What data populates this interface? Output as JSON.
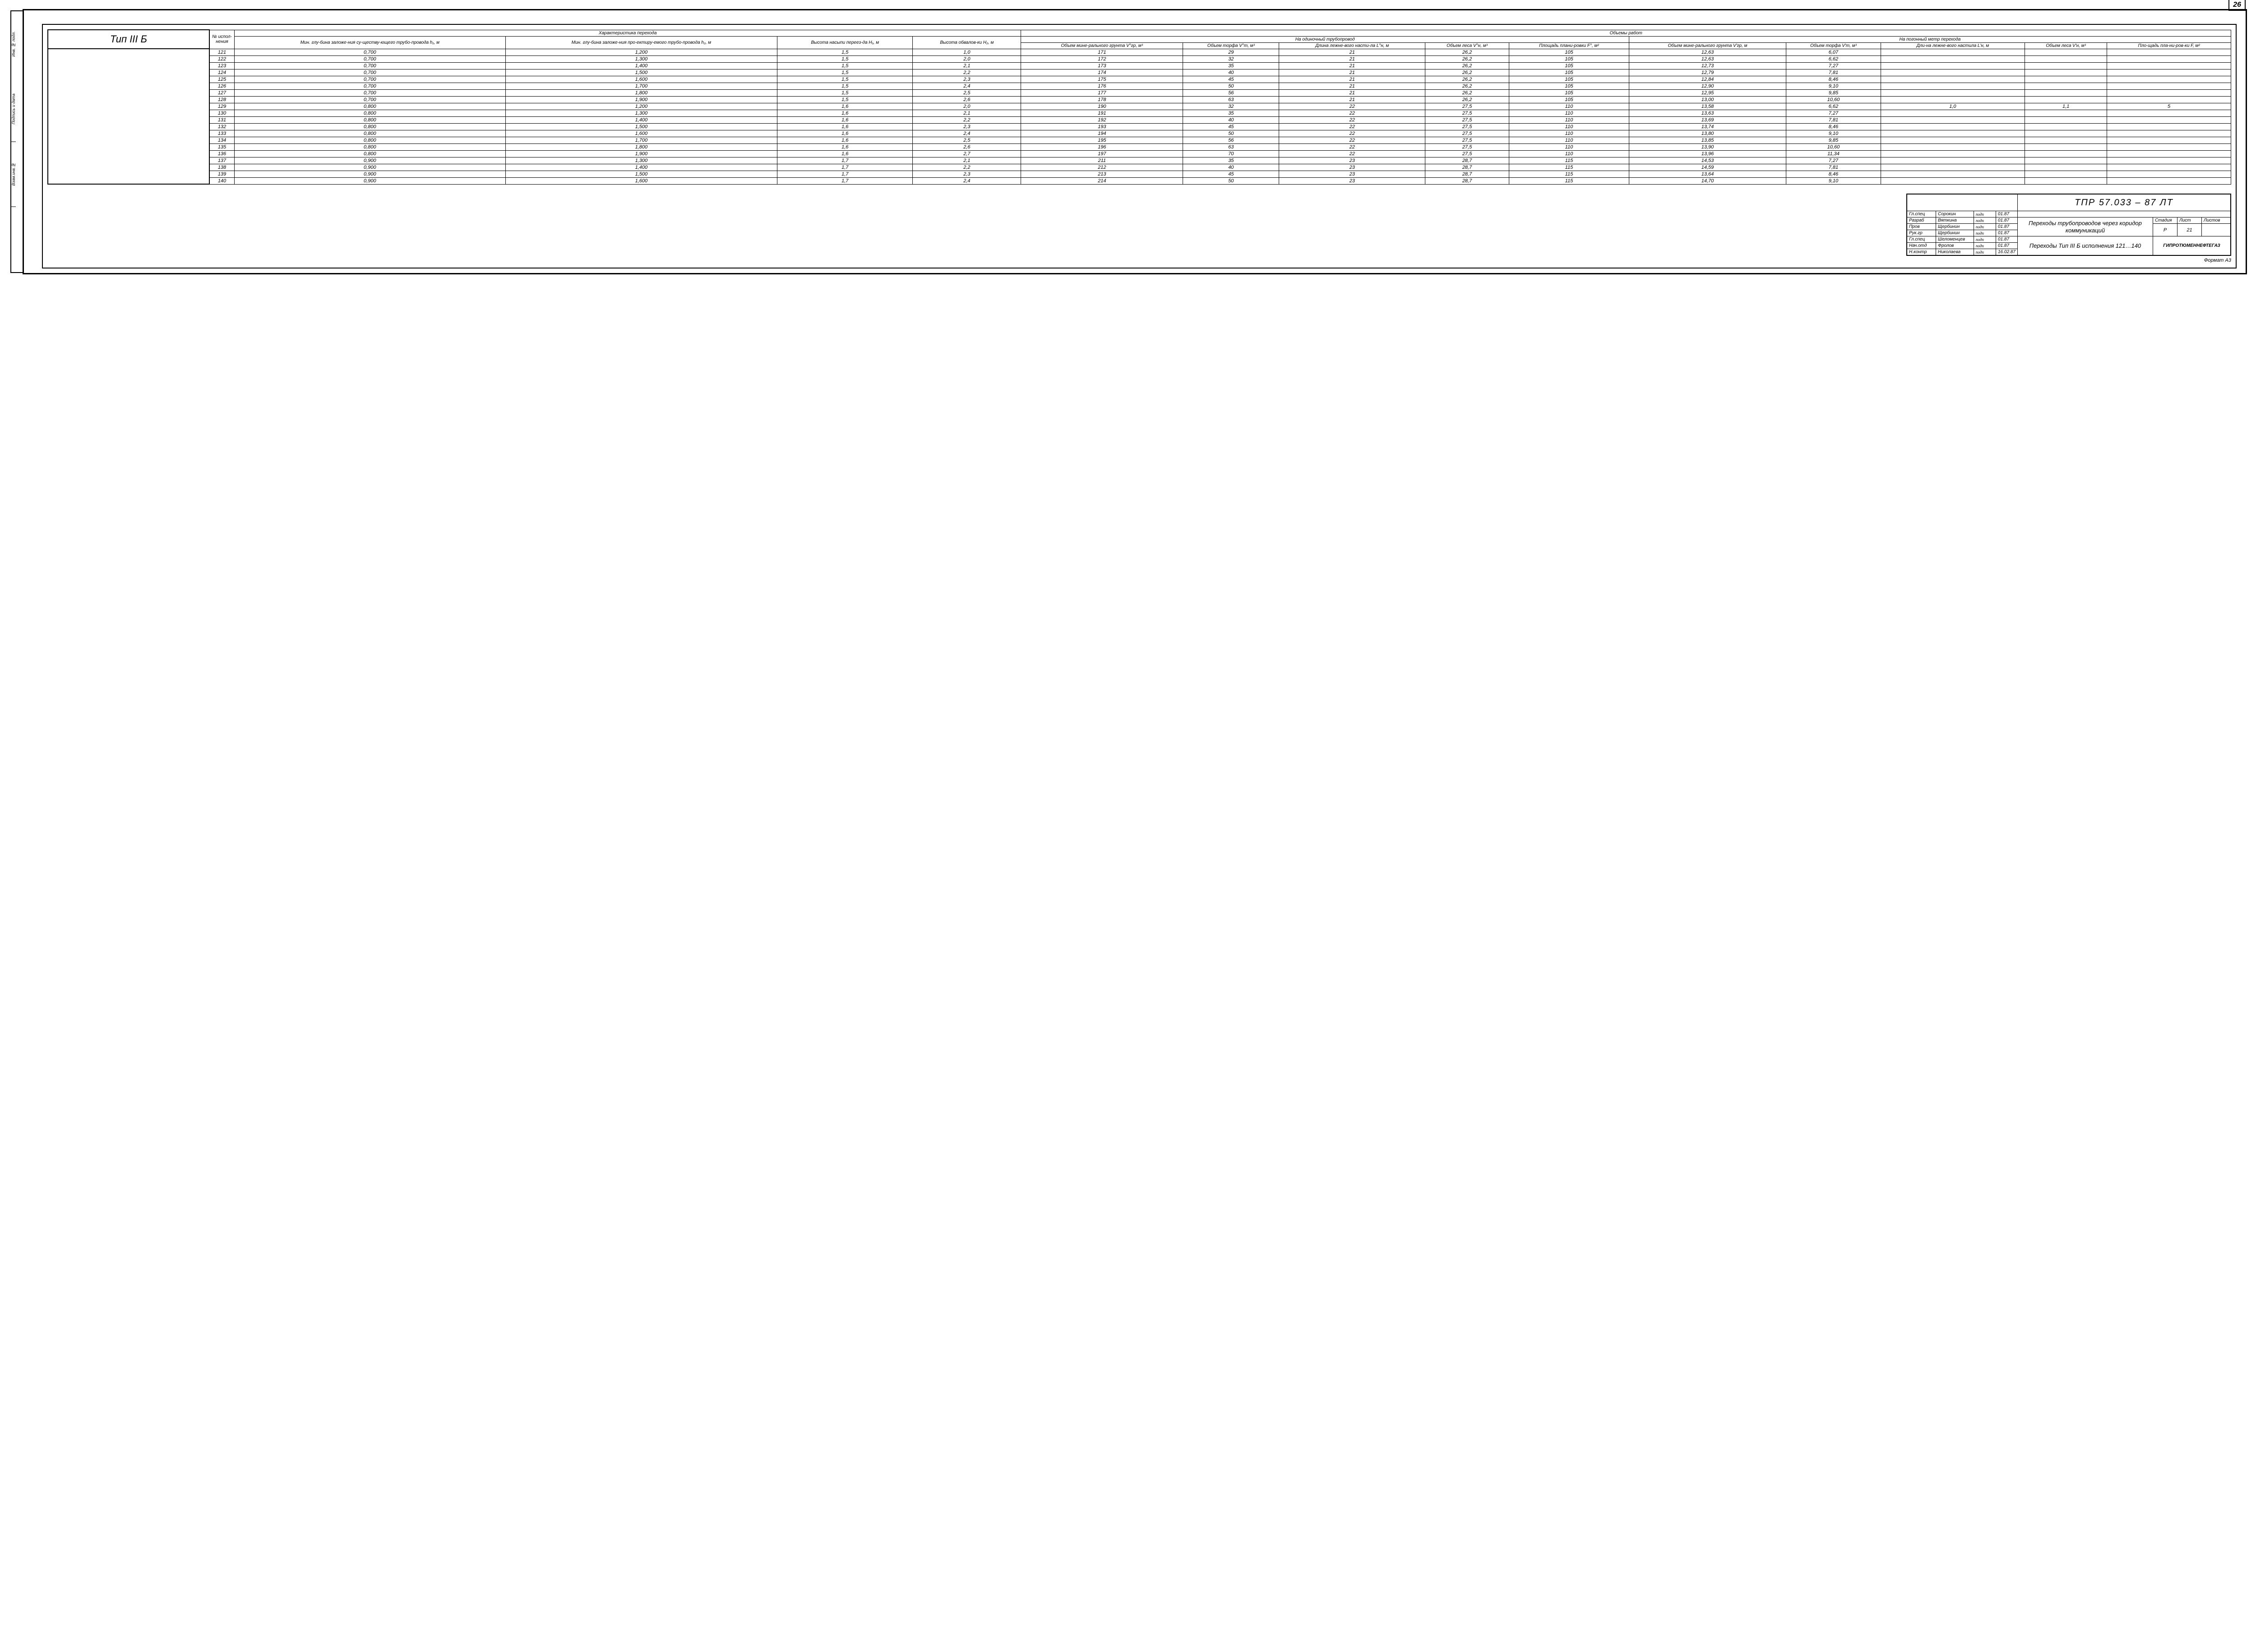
{
  "page_number": "26",
  "type_label": "Тип III Б",
  "left_margin_labels": [
    "Инв. № подл.",
    "Подпись и дата",
    "Взам.инв.№",
    ""
  ],
  "headers": {
    "super": {
      "char": "Характеристика перехода",
      "vol": "Объемы работ",
      "vol_single": "На одиночный трубопровод",
      "vol_perm": "На погонный метр перехода"
    },
    "exec": "№ испол-нения",
    "h1desc": "Мин. глу-бина заложе-ния су-ществу-ющего трубо-провода h₁, м",
    "h2desc": "Мин. глу-бина заложе-ния про-ектиру-емого трубо-провода h₂, м",
    "H1desc": "Высота насыпи переез-да H₁, м",
    "H2desc": "Высота обвалов-ки H₂, м",
    "Vgr": "Объем мине-рального грунта V°гр, м³",
    "Vt": "Объем торфа V°т, м³",
    "Ln": "Длина лежне-вого насти-ла L°н, м",
    "Vl": "Объем леса V°н, м³",
    "Fpl": "Площадь плани-ровки F°, м²",
    "Vgr1": "Объем мине-рального грунта V'гр, м",
    "Vt1": "Объем торфа V'т, м³",
    "Ln1": "Дли-на лежне-вого настила L'н, м",
    "Vl1": "Объем леса V'н, м³",
    "Fpl1": "Пло-щадь пла-ни-ров-ки F, м²"
  },
  "rows": [
    {
      "n": "121",
      "h1": "0,700",
      "h2": "1,200",
      "H1": "1,5",
      "H2": "1,0",
      "Vgr": "171",
      "Vt": "29",
      "Ln": "21",
      "Vl": "26,2",
      "F": "105",
      "Vgr1": "12,63",
      "Vt1": "6,07",
      "Ln1": "",
      "Vl1": "",
      "F1": ""
    },
    {
      "n": "122",
      "h1": "0,700",
      "h2": "1,300",
      "H1": "1,5",
      "H2": "2,0",
      "Vgr": "172",
      "Vt": "32",
      "Ln": "21",
      "Vl": "26,2",
      "F": "105",
      "Vgr1": "12,63",
      "Vt1": "6,62",
      "Ln1": "",
      "Vl1": "",
      "F1": ""
    },
    {
      "n": "123",
      "h1": "0,700",
      "h2": "1,400",
      "H1": "1,5",
      "H2": "2,1",
      "Vgr": "173",
      "Vt": "35",
      "Ln": "21",
      "Vl": "26,2",
      "F": "105",
      "Vgr1": "12,73",
      "Vt1": "7,27",
      "Ln1": "",
      "Vl1": "",
      "F1": ""
    },
    {
      "n": "124",
      "h1": "0,700",
      "h2": "1,500",
      "H1": "1,5",
      "H2": "2,2",
      "Vgr": "174",
      "Vt": "40",
      "Ln": "21",
      "Vl": "26,2",
      "F": "105",
      "Vgr1": "12,79",
      "Vt1": "7,81",
      "Ln1": "",
      "Vl1": "",
      "F1": ""
    },
    {
      "n": "125",
      "h1": "0,700",
      "h2": "1,600",
      "H1": "1,5",
      "H2": "2,3",
      "Vgr": "175",
      "Vt": "45",
      "Ln": "21",
      "Vl": "26,2",
      "F": "105",
      "Vgr1": "12,84",
      "Vt1": "8,46",
      "Ln1": "",
      "Vl1": "",
      "F1": ""
    },
    {
      "n": "126",
      "h1": "0,700",
      "h2": "1,700",
      "H1": "1,5",
      "H2": "2,4",
      "Vgr": "176",
      "Vt": "50",
      "Ln": "21",
      "Vl": "26,2",
      "F": "105",
      "Vgr1": "12,90",
      "Vt1": "9,10",
      "Ln1": "",
      "Vl1": "",
      "F1": ""
    },
    {
      "n": "127",
      "h1": "0,700",
      "h2": "1,800",
      "H1": "1,5",
      "H2": "2,5",
      "Vgr": "177",
      "Vt": "56",
      "Ln": "21",
      "Vl": "26,2",
      "F": "105",
      "Vgr1": "12,95",
      "Vt1": "9,85",
      "Ln1": "",
      "Vl1": "",
      "F1": ""
    },
    {
      "n": "128",
      "h1": "0,700",
      "h2": "1,900",
      "H1": "1,5",
      "H2": "2,6",
      "Vgr": "178",
      "Vt": "63",
      "Ln": "21",
      "Vl": "26,2",
      "F": "105",
      "Vgr1": "13,00",
      "Vt1": "10,60",
      "Ln1": "",
      "Vl1": "",
      "F1": ""
    },
    {
      "n": "129",
      "h1": "0,800",
      "h2": "1,200",
      "H1": "1,6",
      "H2": "2,0",
      "Vgr": "190",
      "Vt": "32",
      "Ln": "22",
      "Vl": "27,5",
      "F": "110",
      "Vgr1": "13,58",
      "Vt1": "6,62",
      "Ln1": "1,0",
      "Vl1": "1,1",
      "F1": "5"
    },
    {
      "n": "130",
      "h1": "0,800",
      "h2": "1,300",
      "H1": "1,6",
      "H2": "2,1",
      "Vgr": "191",
      "Vt": "35",
      "Ln": "22",
      "Vl": "27,5",
      "F": "110",
      "Vgr1": "13,63",
      "Vt1": "7,27",
      "Ln1": "",
      "Vl1": "",
      "F1": ""
    },
    {
      "n": "131",
      "h1": "0,800",
      "h2": "1,400",
      "H1": "1,6",
      "H2": "2,2",
      "Vgr": "192",
      "Vt": "40",
      "Ln": "22",
      "Vl": "27,5",
      "F": "110",
      "Vgr1": "13,69",
      "Vt1": "7,81",
      "Ln1": "",
      "Vl1": "",
      "F1": ""
    },
    {
      "n": "132",
      "h1": "0,800",
      "h2": "1,500",
      "H1": "1,6",
      "H2": "2,3",
      "Vgr": "193",
      "Vt": "45",
      "Ln": "22",
      "Vl": "27,5",
      "F": "110",
      "Vgr1": "13,74",
      "Vt1": "8,46",
      "Ln1": "",
      "Vl1": "",
      "F1": ""
    },
    {
      "n": "133",
      "h1": "0,800",
      "h2": "1,600",
      "H1": "1,6",
      "H2": "2,4",
      "Vgr": "194",
      "Vt": "50",
      "Ln": "22",
      "Vl": "27,5",
      "F": "110",
      "Vgr1": "13,80",
      "Vt1": "9,10",
      "Ln1": "",
      "Vl1": "",
      "F1": ""
    },
    {
      "n": "134",
      "h1": "0,800",
      "h2": "1,700",
      "H1": "1,6",
      "H2": "2,5",
      "Vgr": "195",
      "Vt": "56",
      "Ln": "22",
      "Vl": "27,5",
      "F": "110",
      "Vgr1": "13,85",
      "Vt1": "9,85",
      "Ln1": "",
      "Vl1": "",
      "F1": ""
    },
    {
      "n": "135",
      "h1": "0,800",
      "h2": "1,800",
      "H1": "1,6",
      "H2": "2,6",
      "Vgr": "196",
      "Vt": "63",
      "Ln": "22",
      "Vl": "27,5",
      "F": "110",
      "Vgr1": "13,90",
      "Vt1": "10,60",
      "Ln1": "",
      "Vl1": "",
      "F1": ""
    },
    {
      "n": "136",
      "h1": "0,800",
      "h2": "1,900",
      "H1": "1,6",
      "H2": "2,7",
      "Vgr": "197",
      "Vt": "70",
      "Ln": "22",
      "Vl": "27,5",
      "F": "110",
      "Vgr1": "13,96",
      "Vt1": "11,34",
      "Ln1": "",
      "Vl1": "",
      "F1": ""
    },
    {
      "n": "137",
      "h1": "0,900",
      "h2": "1,300",
      "H1": "1,7",
      "H2": "2,1",
      "Vgr": "211",
      "Vt": "35",
      "Ln": "23",
      "Vl": "28,7",
      "F": "115",
      "Vgr1": "14,53",
      "Vt1": "7,27",
      "Ln1": "",
      "Vl1": "",
      "F1": ""
    },
    {
      "n": "138",
      "h1": "0,900",
      "h2": "1,400",
      "H1": "1,7",
      "H2": "2,2",
      "Vgr": "212",
      "Vt": "40",
      "Ln": "23",
      "Vl": "28,7",
      "F": "115",
      "Vgr1": "14,59",
      "Vt1": "7,81",
      "Ln1": "",
      "Vl1": "",
      "F1": ""
    },
    {
      "n": "139",
      "h1": "0,900",
      "h2": "1,500",
      "H1": "1,7",
      "H2": "2,3",
      "Vgr": "213",
      "Vt": "45",
      "Ln": "23",
      "Vl": "28,7",
      "F": "115",
      "Vgr1": "13,64",
      "Vt1": "8,46",
      "Ln1": "",
      "Vl1": "",
      "F1": ""
    },
    {
      "n": "140",
      "h1": "0,900",
      "h2": "1,600",
      "H1": "1,7",
      "H2": "2,4",
      "Vgr": "214",
      "Vt": "50",
      "Ln": "23",
      "Vl": "28,7",
      "F": "115",
      "Vgr1": "14,70",
      "Vt1": "9,10",
      "Ln1": "",
      "Vl1": "",
      "F1": ""
    }
  ],
  "title_block": {
    "code": "ТПР 57.033 – 87 ЛТ",
    "roles": [
      {
        "role": "Гл.спец",
        "name": "Сорокин",
        "sig": "подп",
        "date": "01.87"
      },
      {
        "role": "Разраб",
        "name": "Вяткина",
        "sig": "подп",
        "date": "01.87"
      },
      {
        "role": "Пров",
        "name": "Щербинин",
        "sig": "подп",
        "date": "01.87"
      },
      {
        "role": "Рук.гр",
        "name": "Щербинин",
        "sig": "подп",
        "date": "01.87"
      },
      {
        "role": "Гл.спец",
        "name": "Шеломенцев",
        "sig": "подп",
        "date": "01.87"
      },
      {
        "role": "Нач.отд",
        "name": "Фролов",
        "sig": "подп",
        "date": "01.87"
      },
      {
        "role": "Н.контр",
        "name": "Николаева",
        "sig": "подп",
        "date": "16.02.87"
      }
    ],
    "desc1": "Переходы трубопроводов через коридор коммуникаций",
    "desc2": "Переходы Тип III Б исполнения 121…140",
    "stage_hdr": "Стадия",
    "sheet_hdr": "Лист",
    "sheets_hdr": "Листов",
    "stage": "Р",
    "sheet": "21",
    "sheets": "",
    "org": "ГИПРОТЮМЕННЕФТЕГАЗ"
  },
  "footer": "Формат А3"
}
